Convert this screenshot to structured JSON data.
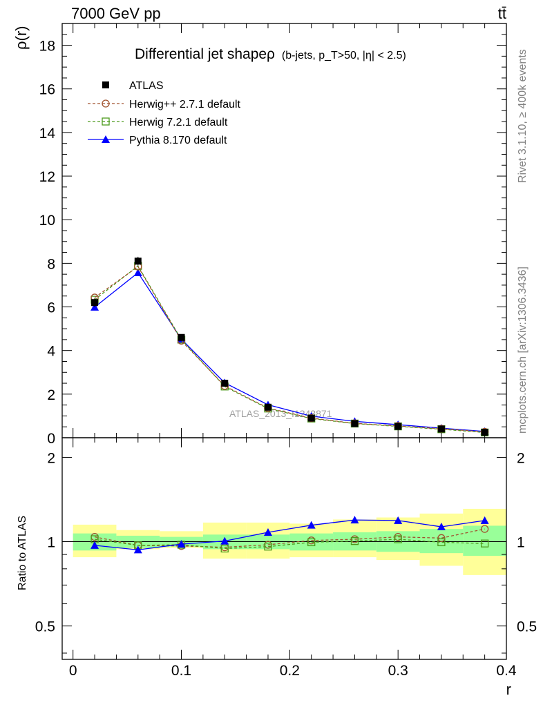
{
  "header": {
    "energy_label": "7000 GeV pp",
    "process_label": "tt̄"
  },
  "side_labels": {
    "rivet": "Rivet 3.1.10, ≥ 400k events",
    "mcplots": "mcplots.cern.ch [arXiv:1306.3436]"
  },
  "watermark": "ATLAS_2013_I1243871",
  "chart_data": [
    {
      "type": "line",
      "title": "Differential jet shapeρ",
      "title_note": "(b-jets, p_T>50, |η| < 2.5)",
      "ylabel": "ρ(r)",
      "xlabel": "",
      "xlim": [
        -0.01,
        0.4
      ],
      "ylim": [
        0,
        19
      ],
      "yticks": [
        0,
        2,
        4,
        6,
        8,
        10,
        12,
        14,
        16,
        18
      ],
      "legend_position": "top-left",
      "x": [
        0.02,
        0.06,
        0.1,
        0.14,
        0.18,
        0.22,
        0.26,
        0.3,
        0.34,
        0.38
      ],
      "series": [
        {
          "name": "ATLAS",
          "marker": "square-filled",
          "color": "#000000",
          "values": [
            6.2,
            8.1,
            4.6,
            2.5,
            1.4,
            0.9,
            0.65,
            0.52,
            0.4,
            0.25
          ],
          "errors": [
            0.2,
            0.2,
            0.1,
            0.08,
            0.05,
            0.04,
            0.03,
            0.03,
            0.03,
            0.03
          ]
        },
        {
          "name": "Herwig++ 2.7.1 default",
          "marker": "circle-open",
          "color": "#a0522d",
          "dashed": true,
          "values": [
            6.43,
            7.85,
            4.45,
            2.38,
            1.36,
            0.9,
            0.66,
            0.54,
            0.41,
            0.27
          ]
        },
        {
          "name": "Herwig 7.2.1 default",
          "marker": "square-open",
          "color": "#4c9a1c",
          "dashed": true,
          "values": [
            6.33,
            7.88,
            4.5,
            2.35,
            1.34,
            0.88,
            0.65,
            0.52,
            0.39,
            0.24
          ]
        },
        {
          "name": "Pythia 8.170 default",
          "marker": "triangle-filled",
          "color": "#0000ff",
          "dashed": false,
          "values": [
            5.99,
            7.57,
            4.52,
            2.52,
            1.51,
            0.99,
            0.75,
            0.6,
            0.44,
            0.29
          ]
        }
      ]
    },
    {
      "type": "line",
      "ylabel": "Ratio to ATLAS",
      "xlabel": "r",
      "xlim": [
        -0.01,
        0.4
      ],
      "ylim": [
        0.38,
        2.35
      ],
      "ylog": true,
      "yticks": [
        0.5,
        1,
        2
      ],
      "xticks": [
        0,
        0.1,
        0.2,
        0.3,
        0.4
      ],
      "reference_line": 1,
      "bands": {
        "x_edges": [
          0.0,
          0.04,
          0.08,
          0.12,
          0.16,
          0.2,
          0.24,
          0.28,
          0.32,
          0.36,
          0.4
        ],
        "inner": [
          [
            0.93,
            1.07
          ],
          [
            0.95,
            1.05
          ],
          [
            0.96,
            1.04
          ],
          [
            0.94,
            1.06
          ],
          [
            0.94,
            1.06
          ],
          [
            0.93,
            1.07
          ],
          [
            0.93,
            1.08
          ],
          [
            0.92,
            1.09
          ],
          [
            0.91,
            1.11
          ],
          [
            0.89,
            1.14
          ]
        ],
        "outer": [
          [
            0.88,
            1.15
          ],
          [
            0.94,
            1.1
          ],
          [
            0.95,
            1.09
          ],
          [
            0.87,
            1.17
          ],
          [
            0.87,
            1.17
          ],
          [
            0.88,
            1.16
          ],
          [
            0.88,
            1.2
          ],
          [
            0.86,
            1.22
          ],
          [
            0.82,
            1.26
          ],
          [
            0.76,
            1.31
          ]
        ],
        "inner_color": "#99ff99",
        "outer_color": "#ffff99"
      },
      "series": [
        {
          "name": "Herwig++ 2.7.1 default",
          "marker": "circle-open",
          "color": "#a0522d",
          "dashed": true,
          "values": [
            1.04,
            0.97,
            0.965,
            0.955,
            0.975,
            1.01,
            1.02,
            1.04,
            1.03,
            1.11
          ]
        },
        {
          "name": "Herwig 7.2.1 default",
          "marker": "square-open",
          "color": "#4c9a1c",
          "dashed": true,
          "values": [
            1.02,
            0.97,
            0.975,
            0.945,
            0.96,
            0.995,
            1.005,
            1.02,
            0.995,
            0.985
          ]
        },
        {
          "name": "Pythia 8.170 default",
          "marker": "triangle-filled",
          "color": "#0000ff",
          "dashed": false,
          "values": [
            0.97,
            0.935,
            0.98,
            1.005,
            1.08,
            1.145,
            1.195,
            1.19,
            1.13,
            1.19
          ]
        }
      ]
    }
  ]
}
